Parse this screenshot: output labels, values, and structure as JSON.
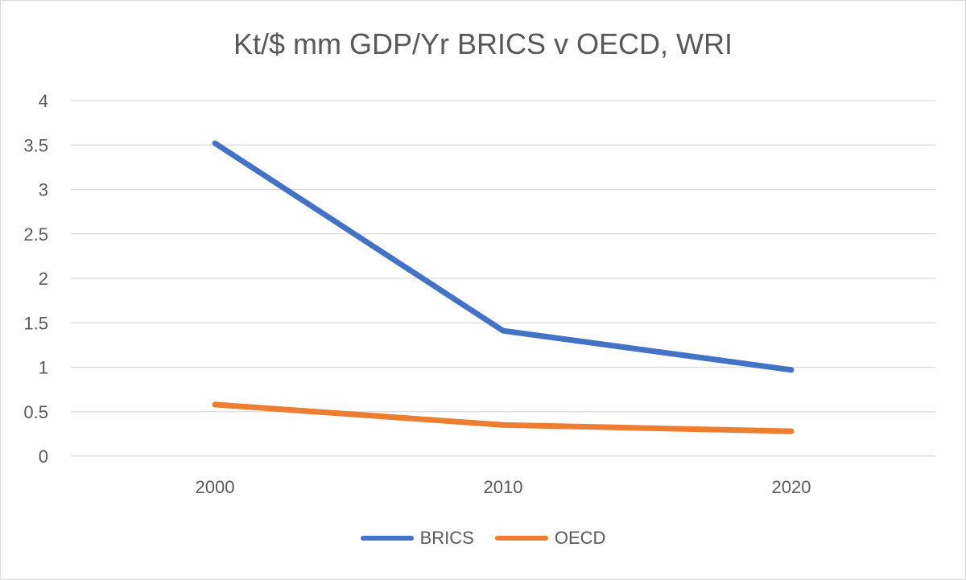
{
  "chart_data": {
    "type": "line",
    "title": "Kt/$ mm GDP/Yr BRICS v OECD, WRI",
    "xlabel": "",
    "ylabel": "",
    "categories": [
      "2000",
      "2010",
      "2020"
    ],
    "ylim": [
      0,
      4
    ],
    "yticks": [
      "0",
      "0.5",
      "1",
      "1.5",
      "2",
      "2.5",
      "3",
      "3.5",
      "4"
    ],
    "grid": true,
    "legend_position": "bottom",
    "series": [
      {
        "name": "BRICS",
        "color": "#4472c4",
        "values": [
          3.52,
          1.41,
          0.97
        ]
      },
      {
        "name": "OECD",
        "color": "#ed7d31",
        "values": [
          0.58,
          0.35,
          0.28
        ]
      }
    ]
  }
}
